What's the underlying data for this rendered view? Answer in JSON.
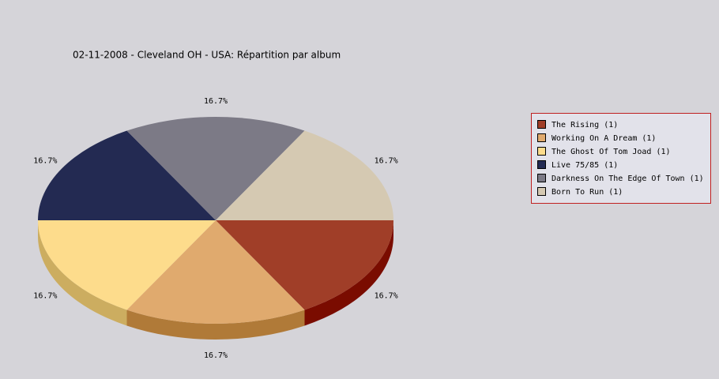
{
  "chart_data": {
    "type": "pie",
    "title": "02-11-2008 - Cleveland OH - USA:  Répartition par album",
    "categories": [
      "The Rising (1)",
      "Working On A Dream (1)",
      "The Ghost Of Tom Joad (1)",
      "Live 75/85 (1)",
      "Darkness On The Edge Of Town (1)",
      "Born To Run (1)"
    ],
    "values": [
      16.7,
      16.7,
      16.7,
      16.7,
      16.7,
      16.7
    ],
    "value_labels": [
      "16.7%",
      "16.7%",
      "16.7%",
      "16.7%",
      "16.7%",
      "16.7%"
    ],
    "colors": [
      "#a03e28",
      "#e0aa6e",
      "#fddc8c",
      "#232a52",
      "#7c7a86",
      "#d5c9b2"
    ],
    "side_colors": [
      "#7a0c00",
      "#b07a38",
      "#ccad60",
      "#151a36",
      "#55535e",
      "#a89c86"
    ],
    "legend": "right"
  }
}
